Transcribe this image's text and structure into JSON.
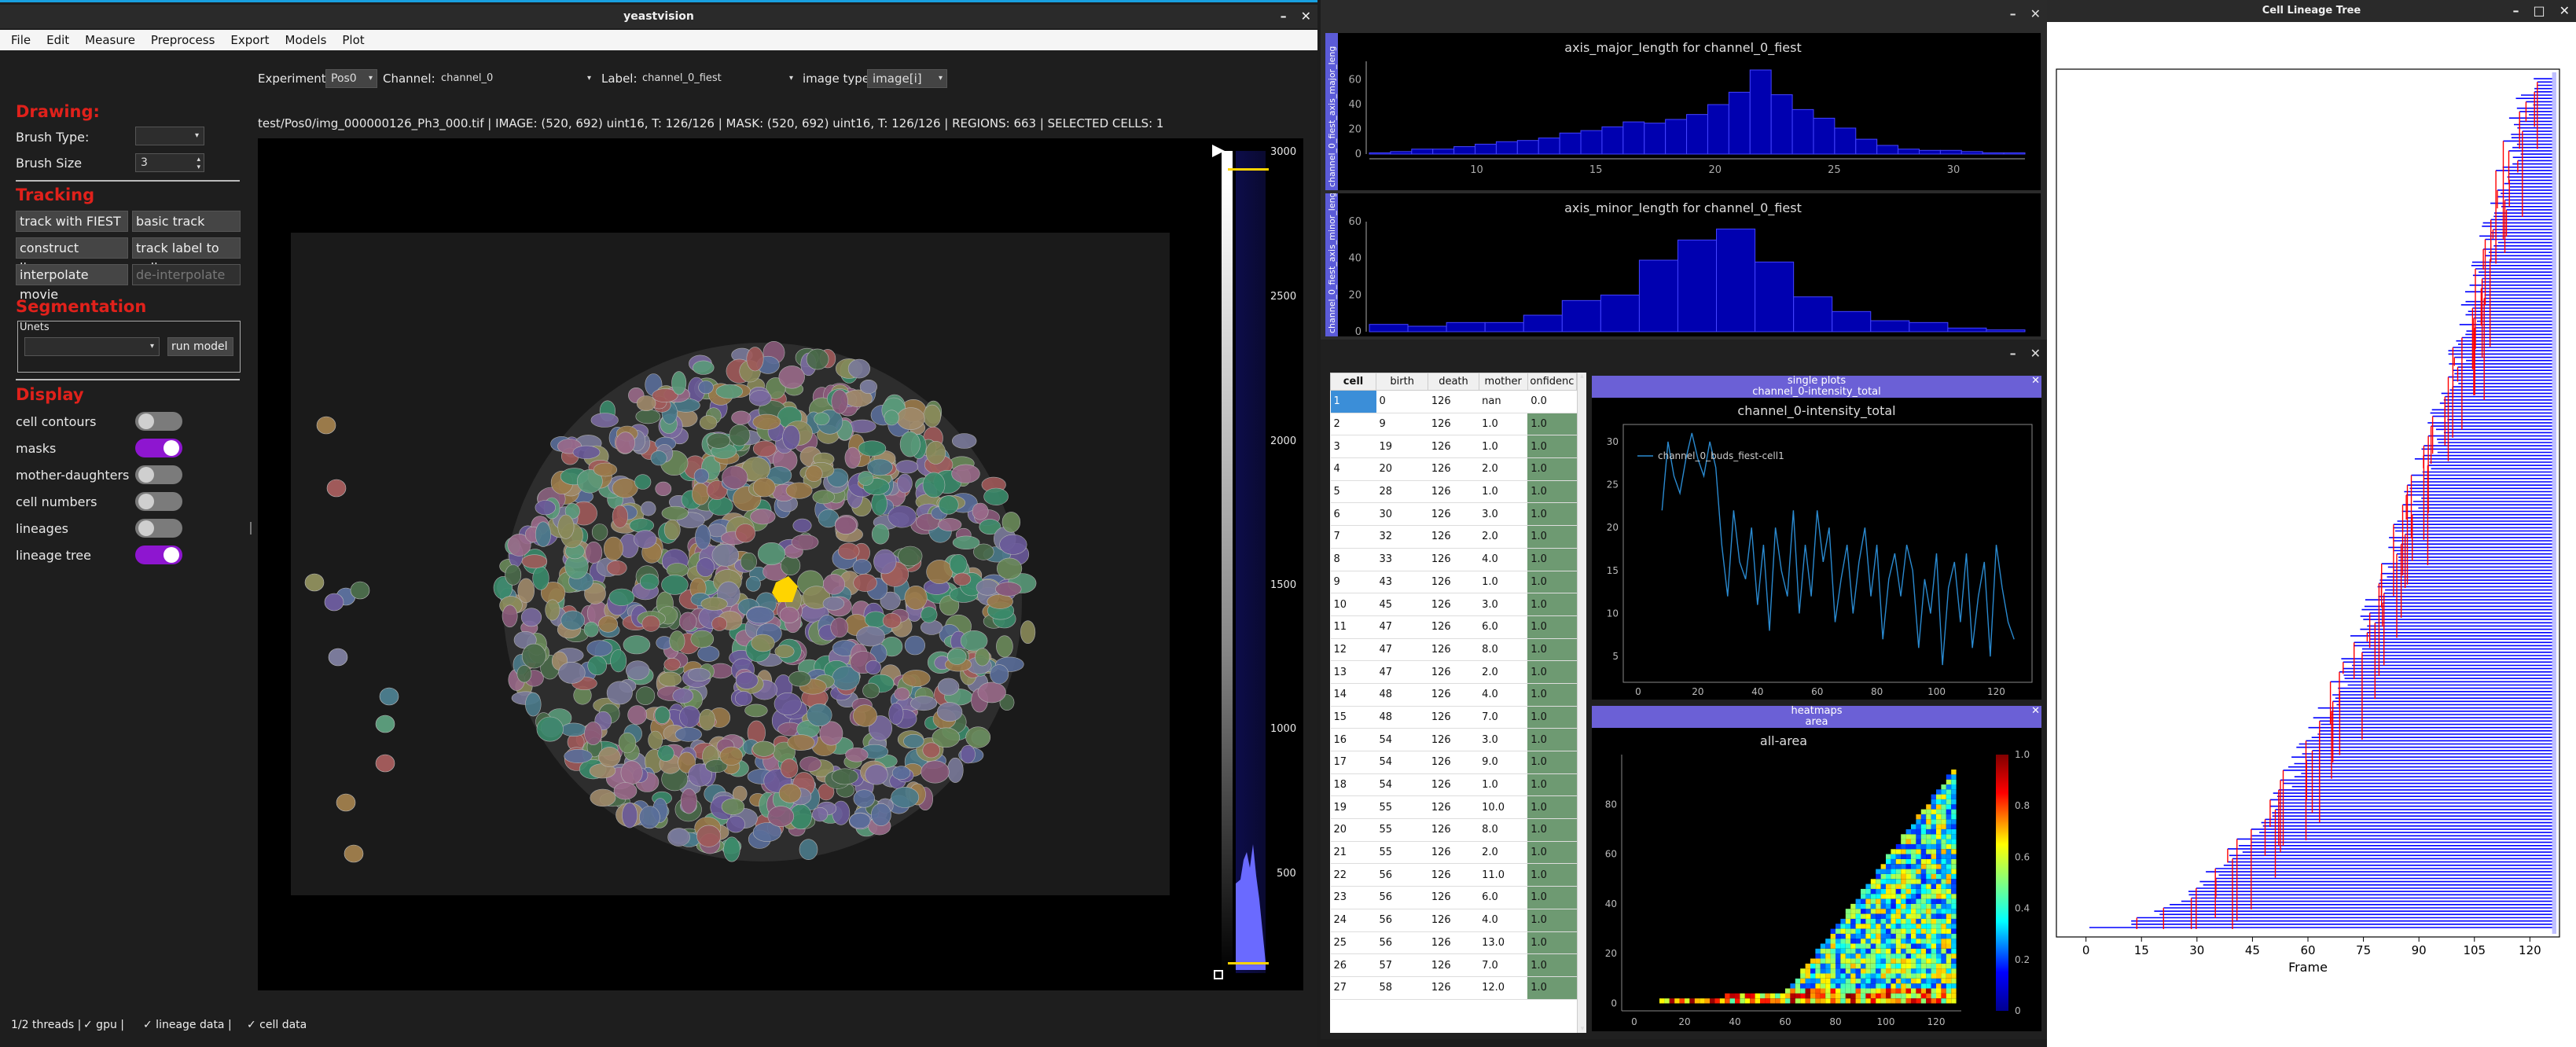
{
  "main": {
    "title": "yeastvision",
    "menu": [
      "File",
      "Edit",
      "Measure",
      "Preprocess",
      "Export",
      "Models",
      "Plot"
    ],
    "toolbar": {
      "experiment_label": "Experiment:",
      "experiment_value": "Pos0",
      "channel_label": "Channel:",
      "channel_value": "channel_0",
      "label_label": "Label:",
      "label_value": "channel_0_fiest",
      "imagetype_label": "image type:",
      "imagetype_value": "image[i]"
    },
    "info_line": "test/Pos0/img_000000126_Ph3_000.tif | IMAGE: (520, 692) uint16, T: 126/126  |  MASK: (520, 692) uint16, T: 126/126  |  REGIONS: 663  |  SELECTED CELLS: 1",
    "sidebar": {
      "drawing": "Drawing:",
      "brush_type": "Brush Type:",
      "brush_size": "Brush Size",
      "brush_size_value": "3",
      "tracking": "Tracking",
      "track_fiest": "track with FIEST",
      "basic_track": "basic track",
      "construct_lineages": "construct lineages",
      "track_label_to_cell": "track label to cell",
      "interpolate_movie": "interpolate movie",
      "de_interpolate": "de-interpolate",
      "segmentation": "Segmentation",
      "unets": "Unets",
      "run_model": "run model",
      "display": "Display",
      "toggles": [
        {
          "label": "cell contours",
          "on": false
        },
        {
          "label": "masks",
          "on": true
        },
        {
          "label": "mother-daughters",
          "on": false
        },
        {
          "label": "cell numbers",
          "on": false
        },
        {
          "label": "lineages",
          "on": false
        },
        {
          "label": "lineage tree",
          "on": true
        }
      ]
    },
    "slider_ticks": [
      "3000",
      "2500",
      "2000",
      "1500",
      "1000",
      "500"
    ],
    "status": {
      "threads": "1/2 threads |",
      "gpu": "✓  gpu |",
      "lineage": "✓  lineage data  |",
      "cell": "✓  cell data"
    }
  },
  "histograms": {
    "major": {
      "title": "axis_major_length for channel_0_fiest",
      "ylabel": "channel_0_fiest_axis_major_leng",
      "yticks": [
        "0",
        "20",
        "40",
        "60"
      ],
      "xticks": [
        "10",
        "15",
        "20",
        "25",
        "30"
      ],
      "chart_data": {
        "type": "bar",
        "x": [
          7.5,
          8.3,
          9.1,
          9.9,
          10.8,
          11.6,
          12.4,
          13.2,
          14.0,
          14.8,
          15.6,
          16.4,
          17.3,
          18.1,
          18.9,
          19.7,
          20.5,
          21.3,
          22.1,
          22.9,
          23.7,
          24.5,
          25.4,
          26.2,
          27.0,
          27.8,
          28.6,
          29.4,
          30.2,
          31.0,
          31.8
        ],
        "values": [
          1,
          2,
          4,
          4,
          6,
          8,
          10,
          11,
          13,
          17,
          19,
          22,
          26,
          25,
          28,
          32,
          40,
          50,
          68,
          48,
          36,
          29,
          21,
          12,
          7,
          4,
          3,
          3,
          2,
          1,
          1
        ],
        "xlim": [
          5.5,
          33
        ],
        "ylim": [
          0,
          75
        ]
      }
    },
    "minor": {
      "title": "axis_minor_length for channel_0_fiest",
      "ylabel": "channel_0_fiest_axis_minor_leng",
      "yticks": [
        "0",
        "20",
        "40",
        "60"
      ],
      "chart_data": {
        "type": "bar",
        "x": [
          1,
          2,
          3,
          4,
          5,
          6,
          7,
          8,
          9,
          10,
          11,
          12,
          13,
          14,
          15,
          16,
          17
        ],
        "values": [
          4,
          3,
          5,
          5,
          9,
          17,
          20,
          39,
          50,
          56,
          38,
          19,
          11,
          6,
          5,
          2,
          1
        ],
        "ylim": [
          0,
          60
        ]
      }
    }
  },
  "table": {
    "headers": [
      "cell",
      "birth",
      "death",
      "mother",
      "onfidenc"
    ],
    "rows": [
      [
        "1",
        "0",
        "126",
        "nan",
        "0.0"
      ],
      [
        "2",
        "9",
        "126",
        "1.0",
        "1.0"
      ],
      [
        "3",
        "19",
        "126",
        "1.0",
        "1.0"
      ],
      [
        "4",
        "20",
        "126",
        "2.0",
        "1.0"
      ],
      [
        "5",
        "28",
        "126",
        "1.0",
        "1.0"
      ],
      [
        "6",
        "30",
        "126",
        "3.0",
        "1.0"
      ],
      [
        "7",
        "32",
        "126",
        "2.0",
        "1.0"
      ],
      [
        "8",
        "33",
        "126",
        "4.0",
        "1.0"
      ],
      [
        "9",
        "43",
        "126",
        "1.0",
        "1.0"
      ],
      [
        "10",
        "45",
        "126",
        "3.0",
        "1.0"
      ],
      [
        "11",
        "47",
        "126",
        "6.0",
        "1.0"
      ],
      [
        "12",
        "47",
        "126",
        "8.0",
        "1.0"
      ],
      [
        "13",
        "47",
        "126",
        "2.0",
        "1.0"
      ],
      [
        "14",
        "48",
        "126",
        "4.0",
        "1.0"
      ],
      [
        "15",
        "48",
        "126",
        "7.0",
        "1.0"
      ],
      [
        "16",
        "54",
        "126",
        "3.0",
        "1.0"
      ],
      [
        "17",
        "54",
        "126",
        "9.0",
        "1.0"
      ],
      [
        "18",
        "54",
        "126",
        "1.0",
        "1.0"
      ],
      [
        "19",
        "55",
        "126",
        "10.0",
        "1.0"
      ],
      [
        "20",
        "55",
        "126",
        "8.0",
        "1.0"
      ],
      [
        "21",
        "55",
        "126",
        "2.0",
        "1.0"
      ],
      [
        "22",
        "56",
        "126",
        "11.0",
        "1.0"
      ],
      [
        "23",
        "56",
        "126",
        "6.0",
        "1.0"
      ],
      [
        "24",
        "56",
        "126",
        "4.0",
        "1.0"
      ],
      [
        "25",
        "56",
        "126",
        "13.0",
        "1.0"
      ],
      [
        "26",
        "57",
        "126",
        "7.0",
        "1.0"
      ],
      [
        "27",
        "58",
        "126",
        "12.0",
        "1.0"
      ]
    ]
  },
  "single_plots": {
    "header1": "single plots",
    "header2": "channel_0-intensity_total",
    "title": "channel_0-intensity_total",
    "legend": "channel_0_buds_fiest-cell1",
    "yticks": [
      "5",
      "10",
      "15",
      "20",
      "25",
      "30"
    ],
    "xticks": [
      "0",
      "20",
      "40",
      "60",
      "80",
      "100",
      "120"
    ],
    "chart_data": {
      "type": "line",
      "x": [
        8,
        10,
        12,
        14,
        16,
        18,
        20,
        22,
        24,
        26,
        28,
        30,
        32,
        34,
        36,
        38,
        40,
        42,
        44,
        46,
        48,
        50,
        52,
        54,
        56,
        58,
        60,
        62,
        64,
        66,
        68,
        70,
        72,
        74,
        76,
        78,
        80,
        82,
        84,
        86,
        88,
        90,
        92,
        94,
        96,
        98,
        100,
        102,
        104,
        106,
        108,
        110,
        112,
        114,
        116,
        118,
        120,
        122,
        124,
        126
      ],
      "values": [
        22,
        30,
        26,
        24,
        28,
        31,
        28,
        26,
        30,
        27,
        18,
        12,
        22,
        16,
        14,
        20,
        11,
        18,
        8,
        20,
        15,
        12,
        22,
        10,
        18,
        12,
        22,
        16,
        20,
        9,
        14,
        18,
        10,
        16,
        20,
        12,
        18,
        7,
        14,
        17,
        12,
        18,
        15,
        6,
        14,
        10,
        17,
        4,
        13,
        16,
        9,
        17,
        6,
        12,
        16,
        5,
        18,
        13,
        9,
        7
      ],
      "xlim": [
        -5,
        132
      ],
      "ylim": [
        2,
        32
      ]
    }
  },
  "heatmap": {
    "header1": "heatmaps",
    "header2": "area",
    "title": "all-area",
    "yticks": [
      "0",
      "20",
      "40",
      "60",
      "80"
    ],
    "xticks": [
      "0",
      "20",
      "40",
      "60",
      "80",
      "100",
      "120"
    ],
    "cbar_ticks": [
      "0",
      "0.2",
      "0.4",
      "0.6",
      "0.8",
      "1.0"
    ],
    "chart_data": {
      "type": "heatmap",
      "xlim": [
        -5,
        130
      ],
      "ylim": [
        -3,
        100
      ],
      "cbar_range": [
        0,
        1
      ]
    }
  },
  "lineage": {
    "title": "Cell Lineage Tree",
    "xlabel": "Frame",
    "xticks": [
      "0",
      "15",
      "30",
      "45",
      "60",
      "75",
      "90",
      "105",
      "120"
    ],
    "chart_data": {
      "type": "line",
      "xlim": [
        -8,
        128
      ]
    }
  },
  "colors": {
    "accent": "#8e16d0",
    "section": "#e0211b",
    "hist_bar": "#0000b0",
    "lineage_blue": "#0000ff",
    "lineage_red": "#ff0000"
  }
}
